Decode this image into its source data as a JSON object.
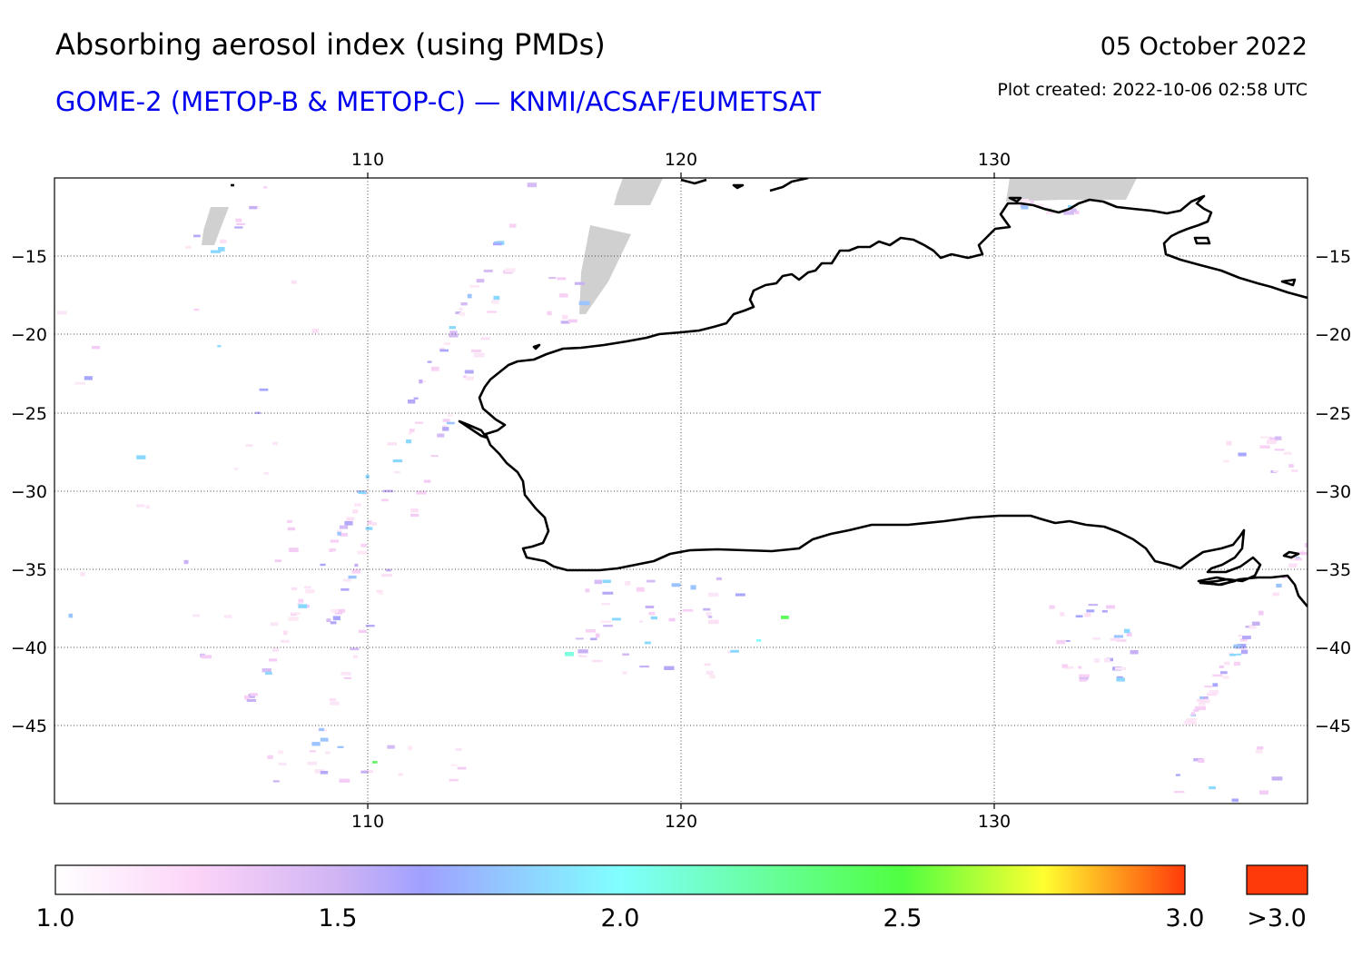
{
  "header": {
    "title": "Absorbing aerosol index (using PMDs)",
    "subtitle": "GOME-2 (METOP-B & METOP-C) — KNMI/ACSAF/EUMETSAT",
    "date": "05 October 2022",
    "created": "Plot created: 2022-10-06 02:58 UTC"
  },
  "map": {
    "lon_range": [
      100,
      140
    ],
    "lat_range": [
      -50,
      -10
    ],
    "lon_ticks": [
      {
        "value": 110,
        "label": "110"
      },
      {
        "value": 120,
        "label": "120"
      },
      {
        "value": 130,
        "label": "130"
      }
    ],
    "lat_ticks": [
      {
        "value": -15,
        "label": "−15"
      },
      {
        "value": -20,
        "label": "−20"
      },
      {
        "value": -25,
        "label": "−25"
      },
      {
        "value": -30,
        "label": "−30"
      },
      {
        "value": -35,
        "label": "−35"
      },
      {
        "value": -40,
        "label": "−40"
      },
      {
        "value": -45,
        "label": "−45"
      }
    ],
    "gridlines": true,
    "coastline_color": "#000000",
    "no_data_color": "#d0d0d0"
  },
  "colorbar": {
    "ticks": [
      {
        "value": 1.0,
        "label": "1.0"
      },
      {
        "value": 1.5,
        "label": "1.5"
      },
      {
        "value": 2.0,
        "label": "2.0"
      },
      {
        "value": 2.5,
        "label": "2.5"
      },
      {
        "value": 3.0,
        "label": "3.0"
      }
    ],
    "overflow_label": ">3.0",
    "overflow_color": "#ff3a0a",
    "stops": [
      {
        "value": 1.0,
        "color": "#ffffff"
      },
      {
        "value": 1.25,
        "color": "#fcd4f8"
      },
      {
        "value": 1.5,
        "color": "#d0b4f4"
      },
      {
        "value": 1.65,
        "color": "#a0a0ff"
      },
      {
        "value": 2.0,
        "color": "#80ffff"
      },
      {
        "value": 2.5,
        "color": "#50ff40"
      },
      {
        "value": 2.75,
        "color": "#ffff30"
      },
      {
        "value": 3.0,
        "color": "#ff3a0a"
      }
    ]
  }
}
